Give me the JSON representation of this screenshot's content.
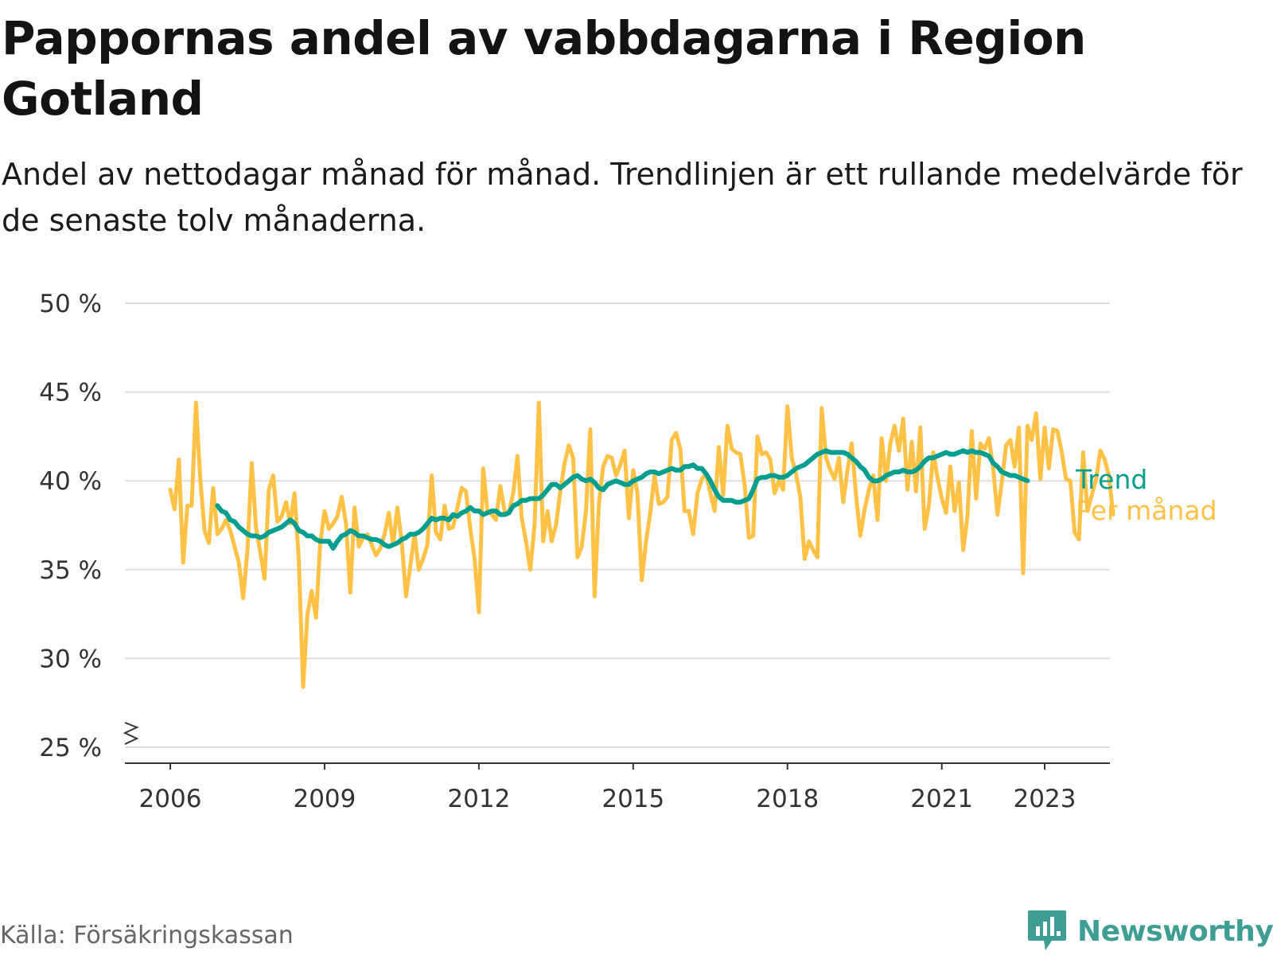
{
  "title": "Pappornas andel av vabbdagarna i Region Gotland",
  "subtitle": "Andel av nettodagar månad för månad. Trendlinjen är ett rullande medelvärde för de senaste tolv månaderna.",
  "source": "Källa: Försäkringskassan",
  "logo": {
    "text": "Newsworthy",
    "icon": "newsworthy-logo-icon"
  },
  "colors": {
    "trend": "#009E8E",
    "monthly": "#FFC247",
    "grid": "#dddddd",
    "axis": "#333333",
    "logo": "#3e9e94"
  },
  "chart_data": {
    "type": "line",
    "title": "Pappornas andel av vabbdagarna i Region Gotland",
    "ylabel": "",
    "xlabel": "",
    "ylim": [
      25,
      50
    ],
    "y_ticks": [
      25,
      30,
      35,
      40,
      45,
      50
    ],
    "y_tick_labels": [
      "25 %",
      "30 %",
      "35 %",
      "40 %",
      "45 %",
      "50 %"
    ],
    "x_ticks": [
      2006,
      2009,
      2012,
      2015,
      2018,
      2021,
      2023
    ],
    "x_tick_labels": [
      "2006",
      "2009",
      "2012",
      "2015",
      "2018",
      "2021",
      "2023"
    ],
    "x_start": 2006.0,
    "x_step": 0.08333,
    "legend_placement": "right-end-labels",
    "series": [
      {
        "name": "Per månad",
        "key": "monthly",
        "values": [
          39.5,
          38.4,
          41.2,
          35.4,
          38.6,
          38.6,
          44.4,
          40.1,
          37.2,
          36.5,
          39.6,
          37.0,
          37.3,
          37.8,
          37.2,
          36.3,
          35.4,
          33.4,
          36.1,
          41.0,
          37.4,
          36.0,
          34.5,
          39.5,
          40.3,
          37.7,
          38.0,
          38.8,
          37.6,
          39.3,
          35.5,
          28.4,
          32.5,
          33.8,
          32.3,
          36.5,
          38.3,
          37.3,
          37.6,
          38.0,
          39.1,
          37.6,
          33.7,
          38.5,
          36.3,
          36.8,
          37.0,
          36.4,
          35.8,
          36.2,
          37.0,
          38.2,
          36.4,
          38.5,
          36.6,
          33.5,
          35.2,
          37.0,
          35.0,
          35.6,
          36.4,
          40.3,
          37.1,
          36.7,
          38.6,
          37.3,
          37.4,
          38.5,
          39.6,
          39.4,
          37.3,
          35.6,
          32.6,
          40.7,
          38.3,
          38.1,
          37.8,
          39.7,
          38.3,
          38.2,
          39.3,
          41.4,
          37.9,
          36.6,
          35.0,
          37.5,
          44.4,
          36.6,
          38.3,
          36.6,
          37.5,
          39.4,
          41.0,
          42.0,
          41.3,
          35.7,
          36.3,
          38.3,
          42.9,
          33.5,
          38.7,
          40.8,
          41.4,
          41.3,
          40.3,
          40.9,
          41.7,
          37.9,
          40.6,
          39.3,
          34.4,
          36.6,
          38.2,
          40.3,
          38.7,
          38.8,
          39.1,
          42.3,
          42.7,
          41.8,
          38.3,
          38.3,
          37.0,
          39.3,
          40.1,
          40.4,
          39.3,
          38.3,
          41.9,
          39.2,
          43.1,
          41.8,
          41.6,
          41.5,
          39.8,
          36.8,
          36.9,
          42.5,
          41.5,
          41.6,
          41.2,
          39.3,
          40.0,
          39.5,
          44.2,
          41.3,
          40.4,
          39.1,
          35.6,
          36.6,
          36.1,
          35.7,
          44.1,
          41.3,
          40.6,
          40.1,
          41.3,
          38.8,
          40.6,
          42.1,
          39.2,
          36.9,
          38.4,
          39.5,
          40.3,
          37.8,
          42.4,
          40.0,
          42.1,
          43.1,
          41.7,
          43.5,
          39.5,
          42.2,
          39.4,
          43.0,
          37.3,
          38.6,
          41.6,
          40.2,
          39.0,
          38.2,
          40.8,
          38.3,
          39.9,
          36.1,
          38.0,
          42.8,
          39.0,
          42.1,
          41.8,
          42.4,
          40.7,
          38.1,
          39.9,
          42.0,
          42.3,
          40.8,
          43.0,
          34.8,
          43.1,
          42.3,
          43.8,
          40.1,
          43.0,
          40.7,
          42.9,
          42.8,
          41.6,
          40.1,
          40.0,
          37.1,
          36.7,
          41.6,
          38.3,
          39.2,
          40.1,
          41.7,
          41.2,
          40.3,
          38.1
        ]
      },
      {
        "name": "Trend",
        "key": "trend",
        "start_index": 11,
        "values": [
          38.6,
          38.3,
          38.2,
          37.8,
          37.7,
          37.4,
          37.2,
          37.0,
          36.9,
          36.9,
          36.8,
          36.9,
          37.1,
          37.2,
          37.3,
          37.4,
          37.6,
          37.8,
          37.6,
          37.2,
          37.1,
          36.9,
          36.9,
          36.7,
          36.6,
          36.6,
          36.6,
          36.2,
          36.6,
          36.9,
          37.0,
          37.2,
          37.1,
          36.9,
          36.9,
          36.8,
          36.7,
          36.7,
          36.6,
          36.4,
          36.3,
          36.4,
          36.5,
          36.7,
          36.8,
          37.0,
          37.0,
          37.1,
          37.3,
          37.6,
          37.9,
          37.8,
          37.9,
          37.9,
          37.8,
          38.1,
          38.0,
          38.2,
          38.3,
          38.5,
          38.3,
          38.3,
          38.1,
          38.2,
          38.3,
          38.3,
          38.1,
          38.1,
          38.2,
          38.6,
          38.7,
          38.9,
          38.9,
          39.0,
          39.0,
          39.0,
          39.2,
          39.5,
          39.8,
          39.8,
          39.6,
          39.8,
          40.0,
          40.2,
          40.3,
          40.1,
          40.0,
          40.1,
          39.9,
          39.6,
          39.5,
          39.8,
          39.9,
          40.0,
          39.9,
          39.8,
          39.8,
          40.0,
          40.1,
          40.2,
          40.4,
          40.5,
          40.5,
          40.4,
          40.5,
          40.6,
          40.7,
          40.6,
          40.6,
          40.8,
          40.8,
          40.9,
          40.7,
          40.7,
          40.4,
          40.0,
          39.5,
          39.1,
          38.9,
          38.9,
          38.9,
          38.8,
          38.8,
          38.9,
          39.0,
          39.5,
          40.1,
          40.2,
          40.2,
          40.3,
          40.3,
          40.2,
          40.2,
          40.3,
          40.5,
          40.7,
          40.8,
          40.9,
          41.1,
          41.3,
          41.5,
          41.6,
          41.7,
          41.6,
          41.6,
          41.6,
          41.6,
          41.5,
          41.3,
          41.1,
          40.8,
          40.6,
          40.2,
          40.0,
          40.0,
          40.1,
          40.3,
          40.4,
          40.5,
          40.5,
          40.6,
          40.5,
          40.5,
          40.6,
          40.8,
          41.1,
          41.3,
          41.3,
          41.4,
          41.5,
          41.6,
          41.5,
          41.5,
          41.6,
          41.7,
          41.6,
          41.7,
          41.6,
          41.6,
          41.5,
          41.4,
          41.0,
          40.8,
          40.5,
          40.4,
          40.3,
          40.3,
          40.2,
          40.1,
          40.0
        ]
      }
    ]
  }
}
